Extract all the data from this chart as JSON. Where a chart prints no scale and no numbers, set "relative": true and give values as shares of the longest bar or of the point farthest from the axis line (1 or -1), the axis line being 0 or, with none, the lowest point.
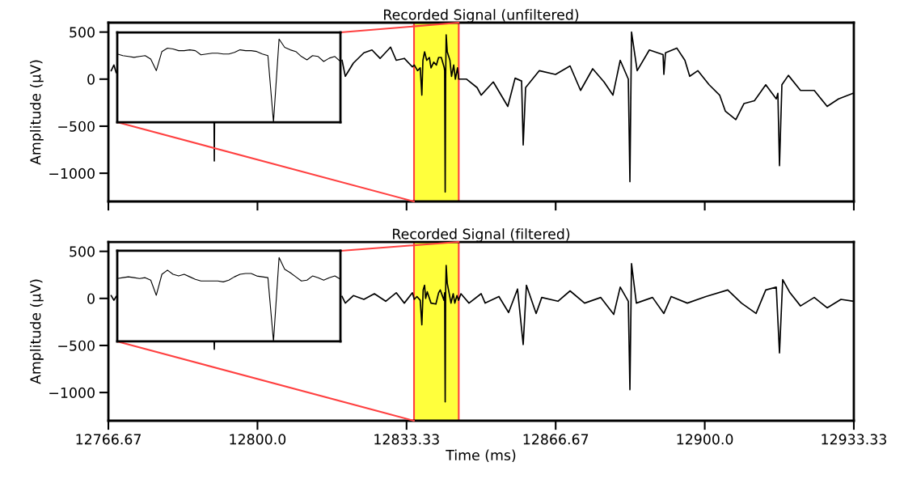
{
  "chart_data": [
    {
      "type": "line",
      "title": "Recorded Signal (unfiltered)",
      "ylabel": "Amplitude (μV)",
      "xlim": [
        12766.67,
        12933.33
      ],
      "ylim": [
        -1300,
        600
      ],
      "xticks": [
        {
          "value": 12766.67,
          "label": null
        },
        {
          "value": 12800,
          "label": null
        },
        {
          "value": 12833.33,
          "label": null
        },
        {
          "value": 12866.67,
          "label": null
        },
        {
          "value": 12900,
          "label": null
        },
        {
          "value": 12933.33,
          "label": null
        }
      ],
      "yticks": [
        500,
        0,
        -500,
        -1000
      ],
      "tick_labels": "y",
      "bands": [
        {
          "axis": "x",
          "from": 12835,
          "to": 12845,
          "color": "#ffff3c"
        }
      ],
      "series": [
        {
          "color": "#000000",
          "x": [
            12767.3,
            12767.9,
            12768.4,
            12769.0,
            12790.3,
            12790.35,
            12790.4,
            12800.0,
            12818.91,
            12819.64,
            12821.44,
            12823.79,
            12825.6,
            12827.41,
            12829.76,
            12831.02,
            12832.83,
            12834.64,
            12835.06,
            12835.79,
            12836.39,
            12836.75,
            12836.99,
            12837.36,
            12837.84,
            12838.44,
            12838.8,
            12839.41,
            12840.01,
            12840.5,
            12841.1,
            12841.76,
            12841.85,
            12841.97,
            12842.07,
            12842.19,
            12842.43,
            12843.03,
            12843.39,
            12843.88,
            12844.24,
            12844.72,
            12845.0,
            12846.75,
            12849.1,
            12850.01,
            12852.72,
            12855.97,
            12857.6,
            12859.05,
            12859.41,
            12859.95,
            12863.02,
            12866.64,
            12869.89,
            12872.24,
            12874.95,
            12877.48,
            12879.47,
            12881.1,
            12882.91,
            12883.27,
            12883.63,
            12884.89,
            12887.61,
            12890.68,
            12890.86,
            12891.22,
            12893.75,
            12895.56,
            12896.64,
            12898.45,
            12900.98,
            12903.33,
            12904.6,
            12906.95,
            12908.76,
            12911.11,
            12913.64,
            12915.99,
            12916.35,
            12916.71,
            12917.25,
            12918.7,
            12921.41,
            12924.48,
            12927.37,
            12929.91,
            12933.16
          ],
          "values": [
            90,
            150,
            70,
            null,
            -460,
            -870,
            -460,
            null,
            200,
            30,
            170,
            280,
            310,
            220,
            340,
            200,
            220,
            130,
            150,
            90,
            120,
            -170,
            200,
            290,
            200,
            230,
            120,
            180,
            150,
            230,
            230,
            120,
            90,
            -1200,
            0,
            470,
            290,
            200,
            30,
            150,
            0,
            120,
            0,
            0,
            -90,
            -170,
            -30,
            -290,
            10,
            -20,
            -700,
            -90,
            90,
            50,
            140,
            -120,
            110,
            -30,
            -170,
            200,
            0,
            -1090,
            500,
            90,
            310,
            260,
            50,
            280,
            330,
            200,
            30,
            90,
            -60,
            -170,
            -340,
            -430,
            -260,
            -230,
            -60,
            -210,
            -150,
            -920,
            -60,
            40,
            -120,
            -120,
            -290,
            -210,
            -150
          ]
        }
      ]
    },
    {
      "type": "line",
      "relative": true,
      "tick_labels": false,
      "categories": [
        null,
        null,
        null,
        null,
        null,
        null,
        null,
        null,
        null,
        null,
        null,
        null,
        null,
        null,
        null,
        null,
        null,
        null,
        null,
        null,
        null,
        null,
        null,
        null,
        null,
        null,
        null,
        null,
        null,
        null,
        null,
        null,
        null,
        null,
        null,
        null,
        null,
        null,
        null,
        null,
        null
      ],
      "series": [
        {
          "color": "#000000",
          "values": [
            0.82,
            0.8,
            0.79,
            0.78,
            0.79,
            0.8,
            0.76,
            0.62,
            0.85,
            0.89,
            0.88,
            0.86,
            0.86,
            0.87,
            0.86,
            0.81,
            0.82,
            0.83,
            0.83,
            0.82,
            0.82,
            0.84,
            0.87,
            0.86,
            0.86,
            0.85,
            0.82,
            0.8,
            0,
            1,
            0.9,
            0.87,
            0.85,
            0.79,
            0.75,
            0.8,
            0.79,
            0.73,
            0.77,
            0.79,
            0.73
          ]
        }
      ]
    },
    {
      "type": "line",
      "title": "Recorded Signal (filtered)",
      "ylabel": "Amplitude (μV)",
      "xlabel": "Time (ms)",
      "xlim": [
        12766.67,
        12933.33
      ],
      "ylim": [
        -1300,
        600
      ],
      "xticks": [
        12766.67,
        {
          "value": 12800,
          "label": "12800.0"
        },
        12833.33,
        12866.67,
        {
          "value": 12900,
          "label": "12900.0"
        },
        12933.33
      ],
      "yticks": [
        500,
        0,
        -500,
        -1000
      ],
      "bands": [
        {
          "axis": "x",
          "from": 12835,
          "to": 12845,
          "color": "#ffff3c"
        }
      ],
      "series": [
        {
          "color": "#000000",
          "x": [
            12767.3,
            12767.9,
            12768.4,
            12769.0,
            12790.3,
            12790.35,
            12790.4,
            12800.0,
            12818.91,
            12819.64,
            12821.44,
            12823.79,
            12826.14,
            12828.67,
            12831.02,
            12832.83,
            12834.64,
            12835.06,
            12835.66,
            12836.39,
            12836.75,
            12837.05,
            12837.36,
            12837.6,
            12837.96,
            12838.8,
            12839.89,
            12840.5,
            12840.86,
            12841.7,
            12841.85,
            12841.97,
            12842.07,
            12842.19,
            12842.43,
            12843.27,
            12843.76,
            12844.12,
            12844.6,
            12844.96,
            12845.49,
            12847.29,
            12850.01,
            12850.91,
            12853.98,
            12856.15,
            12858.14,
            12859.41,
            12860.13,
            12862.3,
            12863.56,
            12867.18,
            12869.89,
            12873.14,
            12876.76,
            12879.65,
            12881.1,
            12882.91,
            12883.27,
            12883.63,
            12884.71,
            12888.33,
            12890.86,
            12892.49,
            12896.1,
            12900.26,
            12905.14,
            12908.21,
            12911.47,
            12913.64,
            12915.99,
            12916.71,
            12917.43,
            12919.06,
            12921.41,
            12924.48,
            12927.37,
            12930.45,
            12933.16
          ],
          "values": [
            30,
            -20,
            20,
            null,
            -450,
            -540,
            -450,
            null,
            20,
            -50,
            30,
            -10,
            50,
            -30,
            60,
            -50,
            60,
            -10,
            20,
            -20,
            -280,
            90,
            140,
            0,
            70,
            -50,
            -60,
            60,
            90,
            -20,
            60,
            -1100,
            60,
            350,
            160,
            -50,
            50,
            -50,
            30,
            -20,
            50,
            -50,
            50,
            -50,
            20,
            -150,
            100,
            -490,
            140,
            -160,
            10,
            -30,
            80,
            -50,
            10,
            -170,
            120,
            -30,
            -970,
            370,
            -50,
            10,
            -160,
            20,
            -50,
            20,
            90,
            -50,
            -160,
            90,
            120,
            -580,
            200,
            60,
            -80,
            10,
            -100,
            -10,
            -30
          ]
        }
      ]
    },
    {
      "type": "line",
      "relative": true,
      "tick_labels": false,
      "categories": [
        null,
        null,
        null,
        null,
        null,
        null,
        null,
        null,
        null,
        null,
        null,
        null,
        null,
        null,
        null,
        null,
        null,
        null,
        null,
        null,
        null,
        null,
        null,
        null,
        null,
        null,
        null,
        null,
        null,
        null,
        null,
        null,
        null,
        null,
        null,
        null,
        null,
        null,
        null,
        null,
        null
      ],
      "series": [
        {
          "color": "#000000",
          "values": [
            0.75,
            0.76,
            0.77,
            0.76,
            0.75,
            0.76,
            0.73,
            0.55,
            0.8,
            0.85,
            0.8,
            0.78,
            0.8,
            0.77,
            0.74,
            0.72,
            0.72,
            0.72,
            0.72,
            0.71,
            0.73,
            0.77,
            0.8,
            0.81,
            0.81,
            0.78,
            0.77,
            0.76,
            0,
            1,
            0.86,
            0.82,
            0.77,
            0.72,
            0.73,
            0.78,
            0.76,
            0.73,
            0.76,
            0.78,
            0.74
          ]
        }
      ]
    }
  ]
}
